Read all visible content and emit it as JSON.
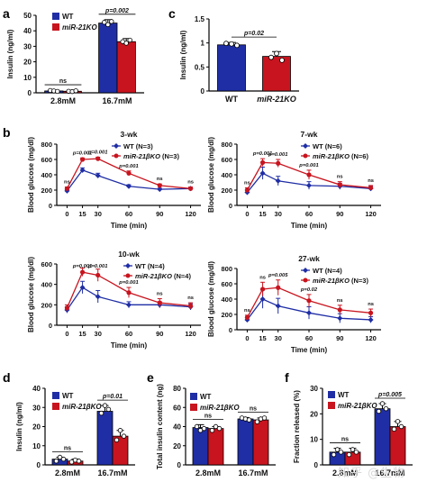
{
  "watermark": "知乎 @生物",
  "colors": {
    "wt": "#1f2ea5",
    "ko": "#c8141e",
    "text": "#111111"
  },
  "chart_data": [
    {
      "panel": "a",
      "type": "bar",
      "ylabel": "Insulin (ng/ml)",
      "ylim": [
        0,
        50
      ],
      "yticks": [
        0,
        10,
        20,
        30,
        40,
        50
      ],
      "categories": [
        "2.8mM",
        "16.7mM"
      ],
      "series": [
        {
          "name": "WT",
          "italic": false,
          "values": [
            1.2,
            45
          ]
        },
        {
          "name": "miR-21KO",
          "italic": true,
          "values": [
            1.0,
            33
          ]
        }
      ],
      "points": [
        [
          [
            1.5,
            1.2,
            0.9
          ],
          [
            45.5,
            44,
            46
          ]
        ],
        [
          [
            1.0,
            0.8,
            1.3
          ],
          [
            33,
            32,
            34
          ]
        ]
      ],
      "errors": [
        [
          0.5,
          2.2
        ],
        [
          0.4,
          2.0
        ]
      ],
      "sig": [
        {
          "group": 0,
          "label": "ns"
        },
        {
          "group": 1,
          "label": "p=0.002"
        }
      ]
    },
    {
      "panel": "c",
      "type": "bar",
      "ylabel": "Insulin (ng/ml)",
      "ylim": [
        0,
        1.5
      ],
      "yticks": [
        0,
        0.5,
        1.0,
        1.5
      ],
      "categories": [
        "WT",
        "miR-21KO"
      ],
      "italic_categories": [
        false,
        true
      ],
      "values": [
        0.96,
        0.72
      ],
      "points": [
        [
          0.99,
          0.98,
          0.95
        ],
        [
          0.7,
          0.78,
          0.64
        ]
      ],
      "errors": [
        0.05,
        0.1
      ],
      "sig": [
        {
          "label": "p=0.02"
        }
      ]
    },
    {
      "panel": "b",
      "type": "line",
      "title": "3-wk",
      "xlabel": "Time (min)",
      "ylabel": "Blood glucose (mg/dl)",
      "ylim": [
        0,
        800
      ],
      "yticks": [
        0,
        200,
        400,
        600,
        800
      ],
      "x": [
        0,
        15,
        30,
        60,
        90,
        120
      ],
      "series": [
        {
          "name": "WT (N=3)",
          "values": [
            190,
            460,
            390,
            250,
            210,
            220
          ],
          "errors": [
            15,
            30,
            30,
            20,
            15,
            15
          ]
        },
        {
          "name": "miR-21βKO (N=3)",
          "values": [
            220,
            600,
            610,
            420,
            260,
            220
          ],
          "errors": [
            20,
            20,
            20,
            30,
            20,
            20
          ]
        }
      ],
      "sig": [
        "ns",
        "p=0.001",
        "p=0.001",
        "p=0.001",
        "ns",
        "ns"
      ]
    },
    {
      "panel": "b",
      "type": "line",
      "title": "7-wk",
      "xlabel": "Time (min)",
      "ylabel": "Blood glucose (mg/dl)",
      "ylim": [
        0,
        800
      ],
      "yticks": [
        0,
        200,
        400,
        600,
        800
      ],
      "x": [
        0,
        15,
        30,
        60,
        90,
        120
      ],
      "series": [
        {
          "name": "WT (N=6)",
          "values": [
            170,
            420,
            320,
            260,
            250,
            220
          ],
          "errors": [
            30,
            80,
            60,
            50,
            40,
            30
          ]
        },
        {
          "name": "miR-21βKO (N=6)",
          "values": [
            200,
            560,
            550,
            400,
            270,
            230
          ],
          "errors": [
            30,
            50,
            50,
            60,
            40,
            30
          ]
        }
      ],
      "sig": [
        "ns",
        "p=0.001",
        "p=0.001",
        "p=0.001",
        "ns",
        "ns"
      ]
    },
    {
      "panel": "b",
      "type": "line",
      "title": "10-wk",
      "xlabel": "Time (min)",
      "ylabel": "Blood glucose (mg/dl)",
      "ylim": [
        0,
        600
      ],
      "yticks": [
        0,
        200,
        400,
        600
      ],
      "x": [
        0,
        15,
        30,
        60,
        90,
        120
      ],
      "series": [
        {
          "name": "WT (N=4)",
          "values": [
            150,
            370,
            280,
            200,
            200,
            180
          ],
          "errors": [
            30,
            60,
            60,
            30,
            30,
            30
          ]
        },
        {
          "name": "miR-21βKO (N=4)",
          "values": [
            170,
            520,
            490,
            320,
            220,
            190
          ],
          "errors": [
            30,
            40,
            60,
            50,
            40,
            30
          ]
        }
      ],
      "sig": [
        "",
        "p=0.001",
        "p=0.001",
        "p=0.001",
        "ns",
        "ns"
      ]
    },
    {
      "panel": "b",
      "type": "line",
      "title": "27-wk",
      "xlabel": "Time (min)",
      "ylabel": "Blood glucose (mg/dl)",
      "ylim": [
        0,
        800
      ],
      "yticks": [
        0,
        200,
        400,
        600,
        800
      ],
      "x": [
        0,
        15,
        30,
        60,
        90,
        120
      ],
      "series": [
        {
          "name": "WT (N=4)",
          "values": [
            130,
            400,
            310,
            220,
            150,
            130
          ],
          "errors": [
            30,
            120,
            100,
            80,
            60,
            40
          ]
        },
        {
          "name": "miR-21βKO (N=3)",
          "values": [
            160,
            530,
            550,
            380,
            260,
            220
          ],
          "errors": [
            30,
            90,
            100,
            80,
            60,
            50
          ]
        }
      ],
      "sig": [
        "ns",
        "ns",
        "p=0.005",
        "p=0.02",
        "ns",
        "ns"
      ]
    },
    {
      "panel": "d",
      "type": "bar",
      "ylabel": "Insulin (ng/ml)",
      "ylim": [
        0,
        40
      ],
      "yticks": [
        0,
        10,
        20,
        30,
        40
      ],
      "categories": [
        "2.8mM",
        "16.7mM"
      ],
      "series": [
        {
          "name": "WT",
          "italic": false,
          "values": [
            3,
            28
          ]
        },
        {
          "name": "miR-21βKO",
          "italic": true,
          "values": [
            2,
            15
          ]
        }
      ],
      "points": [
        [
          [
            2,
            4,
            3
          ],
          [
            27,
            31,
            29
          ]
        ],
        [
          [
            1.5,
            2.5,
            2
          ],
          [
            13,
            18,
            15
          ]
        ]
      ],
      "errors": [
        [
          1,
          3
        ],
        [
          1,
          3
        ]
      ],
      "sig": [
        {
          "group": 0,
          "label": "ns"
        },
        {
          "group": 1,
          "label": "p=0.01"
        }
      ]
    },
    {
      "panel": "e",
      "type": "bar",
      "ylabel": "Total insulin content (ng)",
      "ylim": [
        0,
        80
      ],
      "yticks": [
        0,
        20,
        40,
        60,
        80
      ],
      "categories": [
        "2.8mM",
        "16.7mM"
      ],
      "series": [
        {
          "name": "WT",
          "italic": false,
          "values": [
            39,
            48
          ]
        },
        {
          "name": "miR-21βKO",
          "italic": true,
          "values": [
            38,
            47
          ]
        }
      ],
      "points": [
        [
          [
            40,
            36,
            38
          ],
          [
            49,
            48,
            47
          ]
        ],
        [
          [
            36,
            40,
            38
          ],
          [
            45,
            48,
            49
          ]
        ]
      ],
      "errors": [
        [
          3,
          1.5
        ],
        [
          2,
          2
        ]
      ],
      "sig": [
        {
          "group": 0,
          "label": "ns"
        },
        {
          "group": 1,
          "label": "ns"
        }
      ]
    },
    {
      "panel": "f",
      "type": "bar",
      "ylabel": "Fraction released (%)",
      "ylim": [
        0,
        30
      ],
      "yticks": [
        0,
        10,
        20,
        30
      ],
      "categories": [
        "2.8mM",
        "16.7mM"
      ],
      "series": [
        {
          "name": "WT",
          "italic": false,
          "values": [
            5,
            22
          ]
        },
        {
          "name": "miR-21βKO",
          "italic": true,
          "values": [
            5,
            15
          ]
        }
      ],
      "points": [
        [
          [
            4,
            6,
            5
          ],
          [
            21,
            24,
            22
          ]
        ],
        [
          [
            4,
            6,
            5
          ],
          [
            14,
            17,
            15
          ]
        ]
      ],
      "errors": [
        [
          1.5,
          2
        ],
        [
          1.5,
          2
        ]
      ],
      "sig": [
        {
          "group": 0,
          "label": "ns"
        },
        {
          "group": 1,
          "label": "p=0.005"
        }
      ]
    }
  ]
}
